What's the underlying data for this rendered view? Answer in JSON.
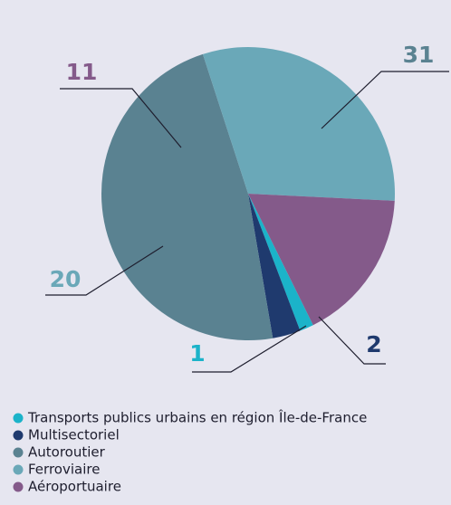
{
  "chart_data": {
    "type": "pie",
    "categories": [
      "Transports publics urbains en région Île-de-France",
      "Multisectoriel",
      "Autoroutier",
      "Ferroviaire",
      "Aéroportuaire"
    ],
    "values": [
      1,
      2,
      31,
      20,
      11
    ],
    "colors": [
      "#1bb3c9",
      "#1f3a6e",
      "#5a8291",
      "#6aa8b8",
      "#845a8a"
    ]
  }
}
